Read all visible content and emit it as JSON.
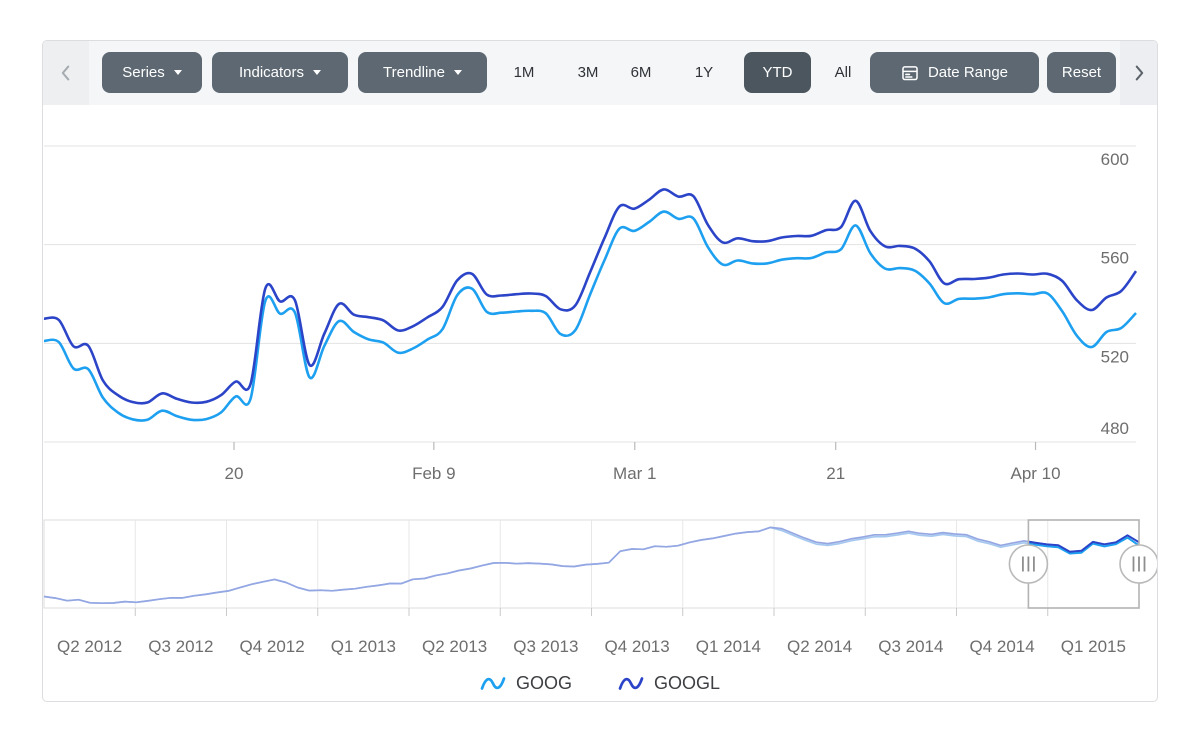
{
  "toolbar": {
    "dropdowns": [
      {
        "label": "Series"
      },
      {
        "label": "Indicators"
      },
      {
        "label": "Trendline"
      }
    ],
    "periods": [
      {
        "label": "1M",
        "selected": false
      },
      {
        "label": "3M",
        "selected": false
      },
      {
        "label": "6M",
        "selected": false
      },
      {
        "label": "1Y",
        "selected": false
      },
      {
        "label": "YTD",
        "selected": true
      },
      {
        "label": "All",
        "selected": false
      }
    ],
    "date_range_label": "Date Range",
    "reset_label": "Reset"
  },
  "legend": [
    {
      "label": "GOOG",
      "color": "#1ea0f0"
    },
    {
      "label": "GOOGL",
      "color": "#2b44c8"
    }
  ],
  "colors": {
    "goog": "#1ea0f0",
    "googl": "#2b44c8",
    "goog_faded": "#a5c8ef",
    "googl_faded": "#95a7e3",
    "button_bg": "#5d6872",
    "button_selected_bg": "#4c565f",
    "toolbar_bg": "#f5f6f7",
    "gridline": "#e3e3e3",
    "axis_line": "#d7d7d7",
    "axis_text": "#6e6e6e"
  },
  "chart_data": [
    {
      "type": "line",
      "title": "",
      "role": "main-price-chart",
      "x_ticks": [
        {
          "label": "20",
          "pos": 0.174
        },
        {
          "label": "Feb 9",
          "pos": 0.357
        },
        {
          "label": "Mar 1",
          "pos": 0.541
        },
        {
          "label": "21",
          "pos": 0.725
        },
        {
          "label": "Apr 10",
          "pos": 0.908
        }
      ],
      "y_ticks": [
        480,
        520,
        560,
        600
      ],
      "ylim": [
        480,
        600
      ],
      "grid": true,
      "series": [
        {
          "name": "GOOG",
          "color": "#1ea0f0",
          "values": [
            521,
            520.5,
            509.8,
            509.5,
            497.9,
            492,
            489.2,
            489,
            492.7,
            490.5,
            489,
            489.3,
            492,
            498.5,
            497.6,
            537.3,
            532,
            532.5,
            506.2,
            519,
            529,
            524.6,
            521.6,
            520.3,
            516.2,
            517.9,
            521.6,
            525.7,
            539.5,
            542.2,
            532.8,
            532.4,
            532.9,
            533.2,
            532.2,
            523.8,
            525.3,
            539.7,
            554,
            566.5,
            565.6,
            569.2,
            573.4,
            570.5,
            570.7,
            558.9,
            551.9,
            553.6,
            552.4,
            552.4,
            553.9,
            554.5,
            554.6,
            556.9,
            558.1,
            567.8,
            556.5,
            550.3,
            550.5,
            549.5,
            544.3,
            536.3,
            538,
            538.1,
            538.6,
            539.9,
            540.3,
            539.9,
            540.2,
            533,
            523,
            518.5,
            524.6,
            526.2,
            532.3
          ]
        },
        {
          "name": "GOOGL",
          "color": "#2b44c8",
          "values": [
            530,
            529.5,
            518.8,
            519,
            504.9,
            499,
            496.2,
            496,
            499.7,
            497.5,
            496,
            496.3,
            499,
            504.5,
            503.6,
            542.3,
            537,
            537.5,
            511.2,
            524,
            536,
            531.6,
            530.6,
            529.3,
            525.2,
            526.9,
            530.6,
            534.7,
            545.5,
            548.2,
            539.8,
            539.4,
            539.9,
            540.2,
            539.2,
            533.8,
            535.3,
            548.7,
            563,
            575.5,
            574.6,
            578.2,
            582.4,
            579.5,
            579.7,
            567.9,
            560.9,
            562.6,
            561.4,
            561.4,
            562.9,
            563.5,
            563.6,
            565.9,
            567.1,
            577.8,
            565.5,
            559.3,
            559.5,
            558.5,
            553.3,
            544.3,
            546,
            546.1,
            546.6,
            547.9,
            548.3,
            547.9,
            548.2,
            545.3,
            537.4,
            533.5,
            538.6,
            541.2,
            549.3
          ]
        }
      ]
    },
    {
      "type": "line",
      "title": "",
      "role": "range-navigator",
      "x_labels": [
        "Q2 2012",
        "Q3 2012",
        "Q4 2012",
        "Q1 2013",
        "Q2 2013",
        "Q3 2013",
        "Q4 2013",
        "Q1 2014",
        "Q2 2014",
        "Q3 2014",
        "Q4 2014",
        "Q1 2015"
      ],
      "ylim": [
        260,
        640
      ],
      "selection": [
        0.899,
        1.0
      ],
      "series": [
        {
          "name": "GOOG",
          "color": "#1ea0f0",
          "color_faded": "#a5c8ef",
          "values": [
            305,
            299,
            295,
            291,
            285,
            281,
            283,
            287,
            285,
            289,
            294,
            301,
            308,
            315,
            322,
            328,
            336,
            348,
            360,
            372,
            380,
            368,
            344,
            338,
            341,
            336,
            339,
            344,
            350,
            357,
            363,
            370,
            380,
            391,
            402,
            412,
            422,
            432,
            442,
            451,
            453,
            447,
            451,
            456,
            450,
            444,
            440,
            446,
            450,
            453,
            504,
            511,
            517,
            522,
            527,
            533,
            545,
            553,
            561,
            569,
            577,
            585,
            595,
            604,
            598,
            575,
            556,
            536,
            528,
            537,
            547,
            556,
            563,
            571,
            579,
            585,
            577,
            571,
            576,
            571,
            566,
            554,
            534,
            526,
            537,
            544,
            534,
            528,
            521,
            492,
            497,
            534,
            523,
            540,
            566,
            533
          ]
        },
        {
          "name": "GOOGL",
          "color": "#2b44c8",
          "color_faded": "#95a7e3",
          "values": [
            305,
            299,
            295,
            291,
            285,
            281,
            283,
            287,
            285,
            289,
            294,
            301,
            308,
            315,
            322,
            328,
            336,
            348,
            360,
            372,
            380,
            368,
            344,
            338,
            341,
            336,
            339,
            344,
            350,
            357,
            363,
            370,
            380,
            391,
            402,
            412,
            422,
            432,
            442,
            451,
            453,
            447,
            451,
            456,
            450,
            444,
            440,
            446,
            450,
            453,
            504,
            511,
            517,
            522,
            527,
            533,
            545,
            553,
            561,
            569,
            577,
            585,
            595,
            604,
            606,
            583,
            564,
            544,
            536,
            545,
            555,
            564,
            571,
            579,
            587,
            593,
            585,
            579,
            584,
            579,
            574,
            562,
            542,
            534,
            545,
            552,
            542,
            536,
            530,
            500,
            505,
            541,
            532,
            548,
            576,
            547
          ]
        }
      ]
    }
  ]
}
